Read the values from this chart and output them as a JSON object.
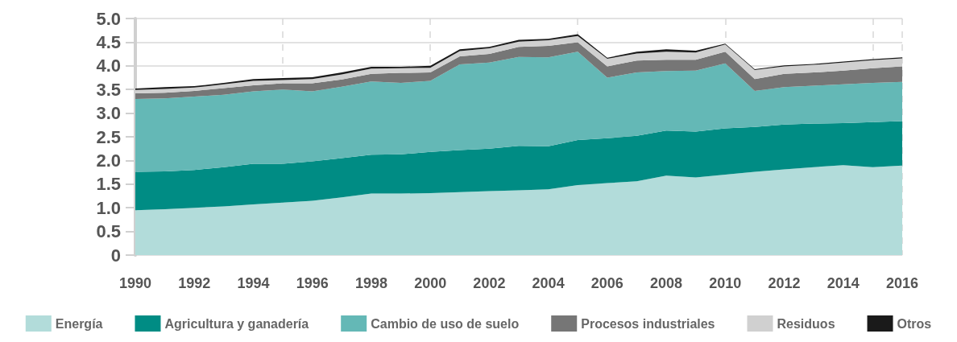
{
  "chart_data": {
    "type": "area",
    "stacked": true,
    "x": [
      1990,
      1991,
      1992,
      1993,
      1994,
      1995,
      1996,
      1997,
      1998,
      1999,
      2000,
      2001,
      2002,
      2003,
      2004,
      2005,
      2006,
      2007,
      2008,
      2009,
      2010,
      2011,
      2012,
      2013,
      2014,
      2015,
      2016
    ],
    "xlim": [
      1990,
      2016
    ],
    "xticks": [
      1990,
      1992,
      1994,
      1996,
      1998,
      2000,
      2002,
      2004,
      2006,
      2008,
      2010,
      2012,
      2014,
      2016
    ],
    "ylim": [
      0,
      5
    ],
    "yticks": [
      0,
      0.5,
      {
        "value": 1,
        "label": "1.0"
      },
      1.5,
      {
        "value": 2,
        "label": "2.0"
      },
      2.5,
      {
        "value": 3,
        "label": "3.0"
      },
      3.5,
      {
        "value": 4,
        "label": "4.0"
      },
      4.5,
      {
        "value": 5,
        "label": "5.0"
      }
    ],
    "grid": true,
    "legend": "bottom",
    "series": [
      {
        "name": "Energía",
        "color": "#b2dcda",
        "values": [
          0.95,
          0.97,
          1.0,
          1.03,
          1.07,
          1.11,
          1.15,
          1.22,
          1.3,
          1.3,
          1.31,
          1.33,
          1.35,
          1.37,
          1.39,
          1.48,
          1.52,
          1.56,
          1.68,
          1.64,
          1.7,
          1.76,
          1.81,
          1.86,
          1.9,
          1.86,
          1.89
        ]
      },
      {
        "name": "Agricultura y ganadería",
        "color": "#008c84",
        "values": [
          0.81,
          0.8,
          0.8,
          0.83,
          0.86,
          0.82,
          0.83,
          0.83,
          0.82,
          0.83,
          0.87,
          0.89,
          0.9,
          0.94,
          0.91,
          0.95,
          0.95,
          0.96,
          0.95,
          0.97,
          0.98,
          0.95,
          0.95,
          0.92,
          0.89,
          0.95,
          0.94
        ]
      },
      {
        "name": "Cambio de uso de suelo",
        "color": "#64b8b6",
        "values": [
          1.54,
          1.54,
          1.55,
          1.53,
          1.53,
          1.57,
          1.48,
          1.51,
          1.55,
          1.51,
          1.5,
          1.81,
          1.82,
          1.88,
          1.88,
          1.87,
          1.28,
          1.34,
          1.26,
          1.29,
          1.37,
          0.76,
          0.79,
          0.8,
          0.82,
          0.83,
          0.83
        ]
      },
      {
        "name": "Procesos industriales",
        "color": "#767676",
        "values": [
          0.12,
          0.12,
          0.12,
          0.14,
          0.13,
          0.13,
          0.17,
          0.15,
          0.16,
          0.21,
          0.18,
          0.17,
          0.18,
          0.21,
          0.24,
          0.2,
          0.24,
          0.25,
          0.24,
          0.23,
          0.25,
          0.25,
          0.28,
          0.28,
          0.29,
          0.31,
          0.33
        ]
      },
      {
        "name": "Residuos",
        "color": "#d0d0d0",
        "values": [
          0.07,
          0.08,
          0.07,
          0.08,
          0.09,
          0.07,
          0.09,
          0.11,
          0.11,
          0.1,
          0.1,
          0.11,
          0.12,
          0.11,
          0.12,
          0.13,
          0.16,
          0.15,
          0.17,
          0.15,
          0.15,
          0.19,
          0.16,
          0.16,
          0.17,
          0.17,
          0.17
        ]
      },
      {
        "name": "Otros",
        "color": "#1a1a1a",
        "values": [
          0.03,
          0.04,
          0.03,
          0.03,
          0.04,
          0.04,
          0.04,
          0.04,
          0.04,
          0.03,
          0.04,
          0.04,
          0.03,
          0.04,
          0.03,
          0.04,
          0.02,
          0.04,
          0.05,
          0.04,
          0.02,
          0.02,
          0.02,
          0.02,
          0.02,
          0.02,
          0.02
        ]
      }
    ]
  }
}
